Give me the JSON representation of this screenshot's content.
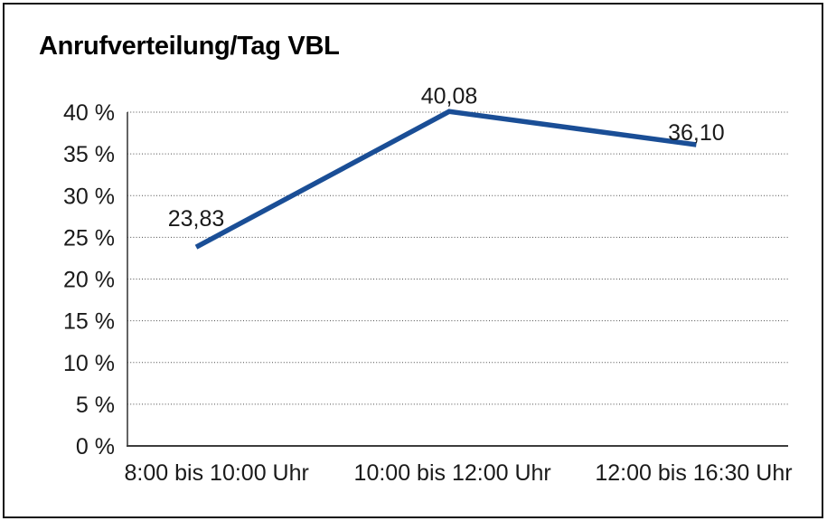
{
  "window": {
    "background": "#ffffff",
    "border_color": "#111111"
  },
  "colors": {
    "series": "#1a4e96",
    "grid": "#4a4a4a",
    "axis": "#3d3d3d",
    "text": "#1a1a1a"
  },
  "chart_data": {
    "type": "line",
    "title": "Anrufverteilung/Tag VBL",
    "xlabel": "",
    "ylabel": "",
    "categories": [
      "8:00 bis 10:00 Uhr",
      "10:00 bis 12:00 Uhr",
      "12:00 bis 16:30 Uhr"
    ],
    "series": [
      {
        "name": "Anrufverteilung",
        "values": [
          23.83,
          40.08,
          36.1
        ]
      }
    ],
    "data_labels": [
      "23,83",
      "40,08",
      "36,10"
    ],
    "y_ticks": [
      {
        "value": 0,
        "label": "0 %"
      },
      {
        "value": 5,
        "label": "5 %"
      },
      {
        "value": 10,
        "label": "10 %"
      },
      {
        "value": 15,
        "label": "15 %"
      },
      {
        "value": 20,
        "label": "20 %"
      },
      {
        "value": 25,
        "label": "25 %"
      },
      {
        "value": 30,
        "label": "30 %"
      },
      {
        "value": 35,
        "label": "35 %"
      },
      {
        "value": 40,
        "label": "40 %"
      }
    ],
    "ylim": [
      0,
      40
    ],
    "grid": "horizontal-dotted",
    "legend_position": "none"
  }
}
